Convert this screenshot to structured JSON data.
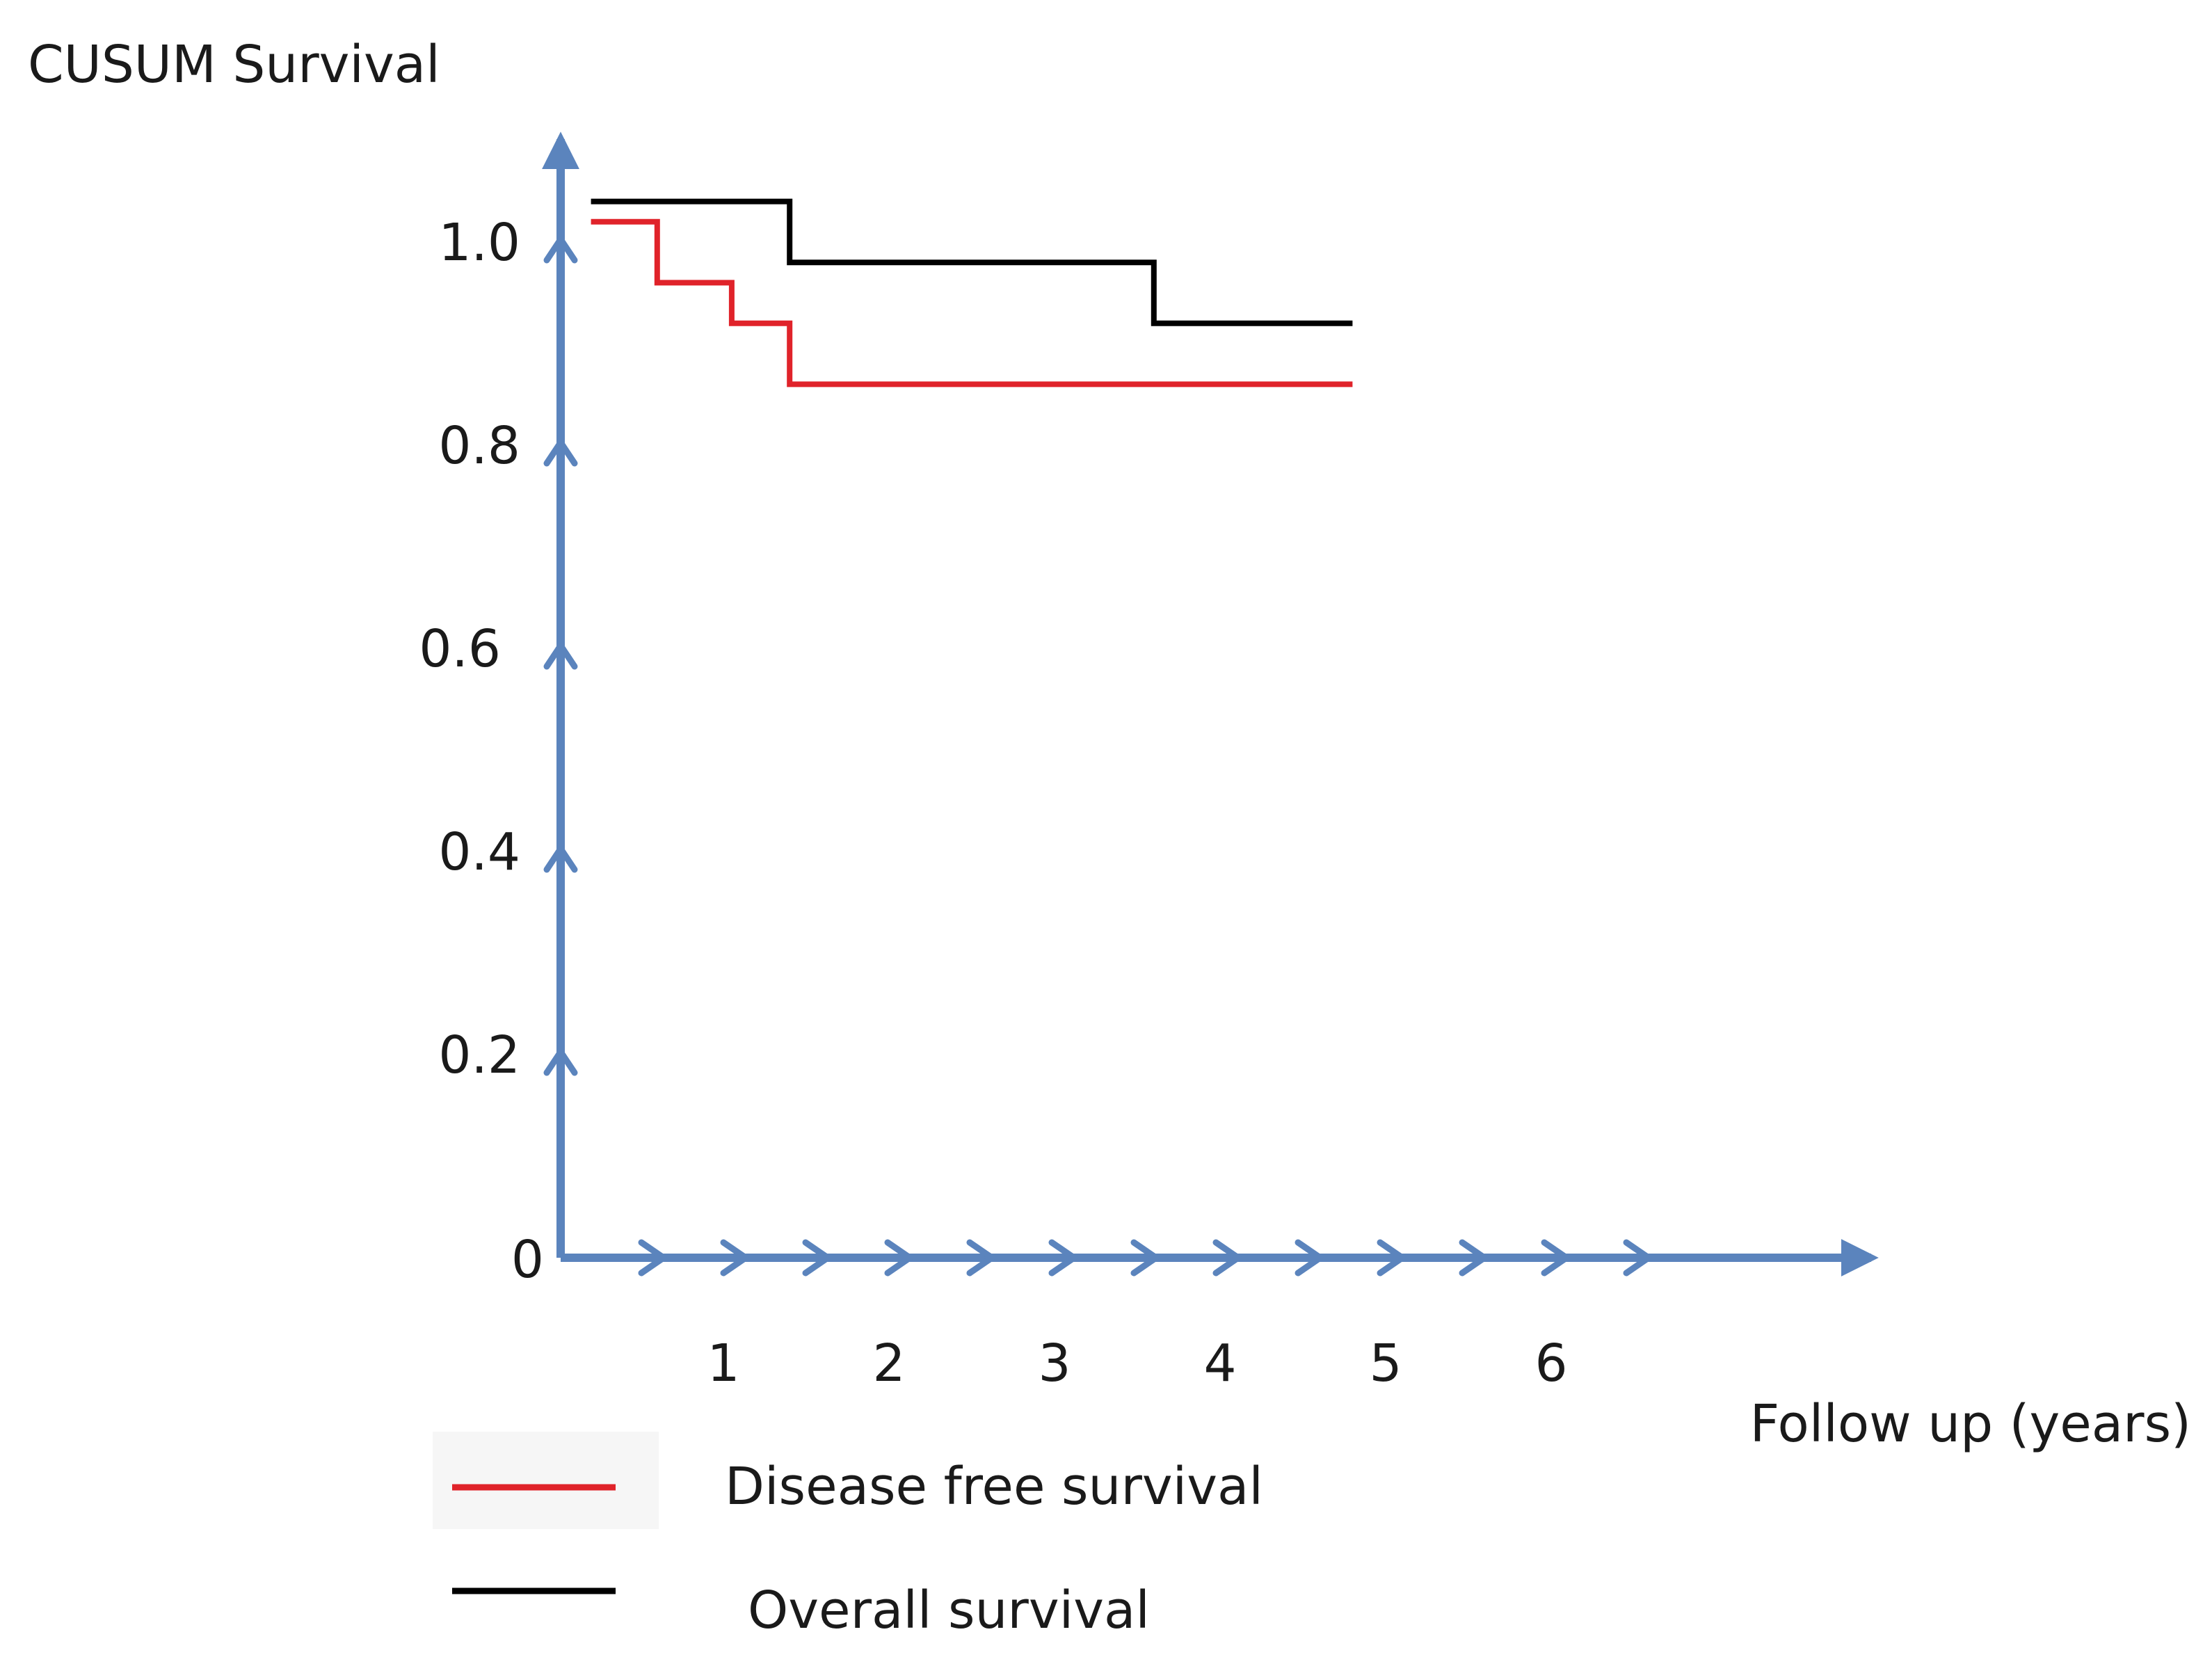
{
  "chart_data": {
    "type": "line",
    "step": true,
    "title": "",
    "ylabel": "CUSUM Survival",
    "xlabel": "Follow up (years)",
    "ylim": [
      0,
      1.05
    ],
    "y_ticks": [
      {
        "label": "0",
        "value": 0
      },
      {
        "label": "0.2",
        "value": 0.2
      },
      {
        "label": "0.4",
        "value": 0.4
      },
      {
        "label": "0.6",
        "value": 0.6
      },
      {
        "label": "0.8",
        "value": 0.8
      },
      {
        "label": "1.0",
        "value": 1.0
      }
    ],
    "x_ticks": [
      {
        "label": "1",
        "value": 1
      },
      {
        "label": "2",
        "value": 2
      },
      {
        "label": "3",
        "value": 3
      },
      {
        "label": "4",
        "value": 4
      },
      {
        "label": "5",
        "value": 5
      },
      {
        "label": "6",
        "value": 6
      }
    ],
    "grid": false,
    "legend_position": "bottom-left",
    "series": [
      {
        "name": "Disease free survival",
        "color": "#e0232a",
        "points": [
          [
            0.2,
            1.02
          ],
          [
            0.6,
            1.02
          ],
          [
            0.6,
            0.96
          ],
          [
            1.05,
            0.96
          ],
          [
            1.05,
            0.92
          ],
          [
            1.4,
            0.92
          ],
          [
            1.4,
            0.86
          ],
          [
            4.8,
            0.86
          ]
        ]
      },
      {
        "name": "Overall survival",
        "color": "#000000",
        "points": [
          [
            0.2,
            1.04
          ],
          [
            1.4,
            1.04
          ],
          [
            1.4,
            0.98
          ],
          [
            3.6,
            0.98
          ],
          [
            3.6,
            0.92
          ],
          [
            4.8,
            0.92
          ]
        ]
      }
    ],
    "axis_color": "#5b84bd"
  }
}
